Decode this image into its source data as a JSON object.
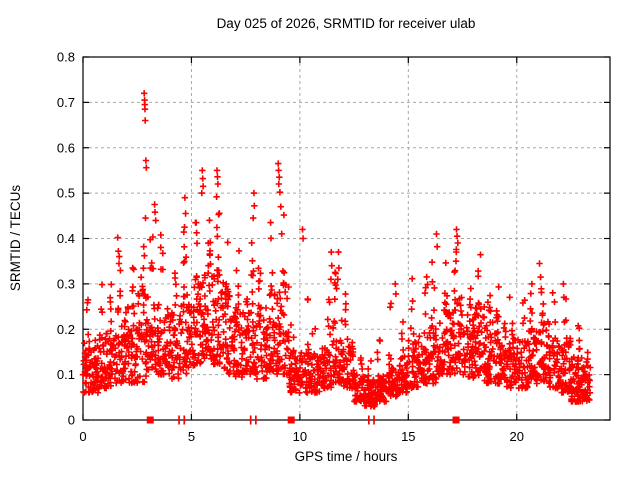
{
  "chart_data": {
    "type": "scatter",
    "title": "Day 025 of 2026, SRMTID for receiver ulab",
    "xlabel": "GPS time / hours",
    "ylabel": "SRMTID / TECUs",
    "xlim": [
      0,
      24.3
    ],
    "ylim": [
      0,
      0.8
    ],
    "xticks": [
      0,
      5,
      10,
      15,
      20
    ],
    "yticks": [
      0,
      0.1,
      0.2,
      0.3,
      0.4,
      0.5,
      0.6,
      0.7,
      0.8
    ],
    "grid": true,
    "grid_color": "#a8a8a8",
    "frame_color": "#000000",
    "marker": {
      "symbol": "plus",
      "color": "#ff0000",
      "size": 7
    },
    "legend": "none",
    "series": [
      {
        "name": "SRMTID",
        "kind": "density_bins",
        "comment": "bins of [x_start_h, x_end_h, y_min, y_dense_top, y_tail_max, n_dense, n_tail] read from the plot envelope",
        "bins": [
          [
            0.0,
            0.5,
            0.06,
            0.17,
            0.3,
            45,
            5
          ],
          [
            0.5,
            1.0,
            0.06,
            0.18,
            0.3,
            45,
            5
          ],
          [
            1.0,
            1.5,
            0.07,
            0.2,
            0.31,
            45,
            5
          ],
          [
            1.5,
            2.0,
            0.08,
            0.24,
            0.37,
            45,
            6
          ],
          [
            2.0,
            2.5,
            0.08,
            0.25,
            0.36,
            45,
            6
          ],
          [
            2.5,
            3.0,
            0.08,
            0.28,
            0.34,
            45,
            5
          ],
          [
            3.0,
            3.5,
            0.1,
            0.28,
            0.43,
            45,
            6
          ],
          [
            3.5,
            4.0,
            0.1,
            0.25,
            0.42,
            42,
            5
          ],
          [
            4.0,
            4.5,
            0.09,
            0.24,
            0.36,
            42,
            5
          ],
          [
            4.5,
            5.0,
            0.1,
            0.28,
            0.44,
            45,
            6
          ],
          [
            5.0,
            5.5,
            0.12,
            0.3,
            0.46,
            45,
            7
          ],
          [
            5.5,
            6.0,
            0.13,
            0.33,
            0.48,
            48,
            8
          ],
          [
            6.0,
            6.5,
            0.12,
            0.32,
            0.47,
            48,
            7
          ],
          [
            6.5,
            7.0,
            0.1,
            0.28,
            0.4,
            45,
            5
          ],
          [
            7.0,
            7.5,
            0.09,
            0.25,
            0.38,
            45,
            5
          ],
          [
            7.5,
            8.0,
            0.1,
            0.28,
            0.44,
            45,
            6
          ],
          [
            8.0,
            8.5,
            0.09,
            0.26,
            0.38,
            45,
            5
          ],
          [
            8.5,
            9.0,
            0.1,
            0.28,
            0.44,
            45,
            5
          ],
          [
            9.0,
            9.5,
            0.1,
            0.3,
            0.47,
            45,
            6
          ],
          [
            9.5,
            10.0,
            0.06,
            0.15,
            0.3,
            42,
            4
          ],
          [
            10.0,
            10.5,
            0.06,
            0.15,
            0.36,
            42,
            4
          ],
          [
            10.5,
            11.0,
            0.06,
            0.14,
            0.25,
            42,
            4
          ],
          [
            11.0,
            11.5,
            0.07,
            0.16,
            0.3,
            42,
            5
          ],
          [
            11.5,
            12.0,
            0.08,
            0.22,
            0.34,
            45,
            6
          ],
          [
            12.0,
            12.5,
            0.07,
            0.18,
            0.3,
            45,
            5
          ],
          [
            12.5,
            13.0,
            0.04,
            0.1,
            0.16,
            48,
            4
          ],
          [
            13.0,
            13.5,
            0.03,
            0.09,
            0.14,
            48,
            3
          ],
          [
            13.5,
            14.0,
            0.04,
            0.1,
            0.18,
            46,
            4
          ],
          [
            14.0,
            14.5,
            0.05,
            0.12,
            0.26,
            45,
            5
          ],
          [
            14.5,
            15.0,
            0.06,
            0.14,
            0.25,
            42,
            4
          ],
          [
            15.0,
            15.5,
            0.07,
            0.18,
            0.33,
            42,
            5
          ],
          [
            15.5,
            16.0,
            0.08,
            0.2,
            0.32,
            42,
            5
          ],
          [
            16.0,
            16.5,
            0.08,
            0.22,
            0.37,
            45,
            5
          ],
          [
            16.5,
            17.0,
            0.1,
            0.25,
            0.36,
            45,
            5
          ],
          [
            17.0,
            17.5,
            0.1,
            0.28,
            0.38,
            45,
            6
          ],
          [
            17.5,
            18.0,
            0.09,
            0.24,
            0.36,
            45,
            5
          ],
          [
            18.0,
            18.5,
            0.09,
            0.25,
            0.4,
            45,
            5
          ],
          [
            18.5,
            19.0,
            0.08,
            0.22,
            0.33,
            45,
            5
          ],
          [
            19.0,
            19.5,
            0.08,
            0.22,
            0.35,
            45,
            5
          ],
          [
            19.5,
            20.0,
            0.07,
            0.18,
            0.28,
            42,
            4
          ],
          [
            20.0,
            20.5,
            0.07,
            0.18,
            0.28,
            42,
            4
          ],
          [
            20.5,
            21.0,
            0.08,
            0.2,
            0.31,
            45,
            5
          ],
          [
            21.0,
            21.5,
            0.08,
            0.22,
            0.33,
            45,
            5
          ],
          [
            21.5,
            22.0,
            0.07,
            0.18,
            0.3,
            42,
            4
          ],
          [
            22.0,
            22.5,
            0.06,
            0.18,
            0.3,
            45,
            5
          ],
          [
            22.5,
            23.0,
            0.04,
            0.14,
            0.22,
            58,
            5
          ],
          [
            23.0,
            23.4,
            0.04,
            0.12,
            0.16,
            40,
            3
          ]
        ],
        "seed": 42,
        "dense_bias": 1.35,
        "tail_bias": 1.6
      },
      {
        "name": "peak-points",
        "kind": "points",
        "points": [
          [
            2.82,
            0.72
          ],
          [
            2.84,
            0.705
          ],
          [
            2.85,
            0.695
          ],
          [
            2.86,
            0.685
          ],
          [
            2.87,
            0.66
          ],
          [
            2.9,
            0.572
          ],
          [
            2.92,
            0.556
          ],
          [
            2.88,
            0.445
          ],
          [
            2.8,
            0.382
          ],
          [
            2.83,
            0.362
          ],
          [
            1.6,
            0.402
          ],
          [
            1.63,
            0.372
          ],
          [
            1.66,
            0.345
          ],
          [
            3.3,
            0.475
          ],
          [
            3.32,
            0.458
          ],
          [
            3.35,
            0.44
          ],
          [
            4.7,
            0.49
          ],
          [
            4.73,
            0.455
          ],
          [
            4.68,
            0.425
          ],
          [
            5.5,
            0.55
          ],
          [
            5.52,
            0.532
          ],
          [
            5.54,
            0.515
          ],
          [
            5.48,
            0.5
          ],
          [
            6.18,
            0.55
          ],
          [
            6.2,
            0.536
          ],
          [
            6.22,
            0.52
          ],
          [
            6.16,
            0.492
          ],
          [
            7.88,
            0.5
          ],
          [
            7.9,
            0.472
          ],
          [
            7.85,
            0.445
          ],
          [
            9.0,
            0.565
          ],
          [
            9.02,
            0.55
          ],
          [
            9.05,
            0.535
          ],
          [
            9.03,
            0.52
          ],
          [
            9.08,
            0.502
          ],
          [
            9.12,
            0.47
          ],
          [
            10.12,
            0.42
          ],
          [
            10.15,
            0.4
          ],
          [
            11.45,
            0.37
          ],
          [
            11.47,
            0.34
          ],
          [
            11.43,
            0.31
          ],
          [
            11.78,
            0.37
          ],
          [
            11.8,
            0.335
          ],
          [
            11.75,
            0.31
          ],
          [
            14.4,
            0.3
          ],
          [
            14.43,
            0.278
          ],
          [
            16.3,
            0.41
          ],
          [
            16.33,
            0.382
          ],
          [
            17.22,
            0.42
          ],
          [
            17.25,
            0.405
          ],
          [
            17.28,
            0.39
          ],
          [
            21.05,
            0.345
          ],
          [
            21.1,
            0.315
          ],
          [
            20.7,
            0.3
          ],
          [
            22.15,
            0.3
          ]
        ]
      },
      {
        "name": "baseline-squares",
        "kind": "squares_y0",
        "x": [
          3.1,
          9.6,
          17.2
        ],
        "size": 7
      },
      {
        "name": "baseline-double-ticks",
        "kind": "double_ticks_y0",
        "x": [
          4.55,
          7.85,
          13.3
        ]
      }
    ]
  }
}
